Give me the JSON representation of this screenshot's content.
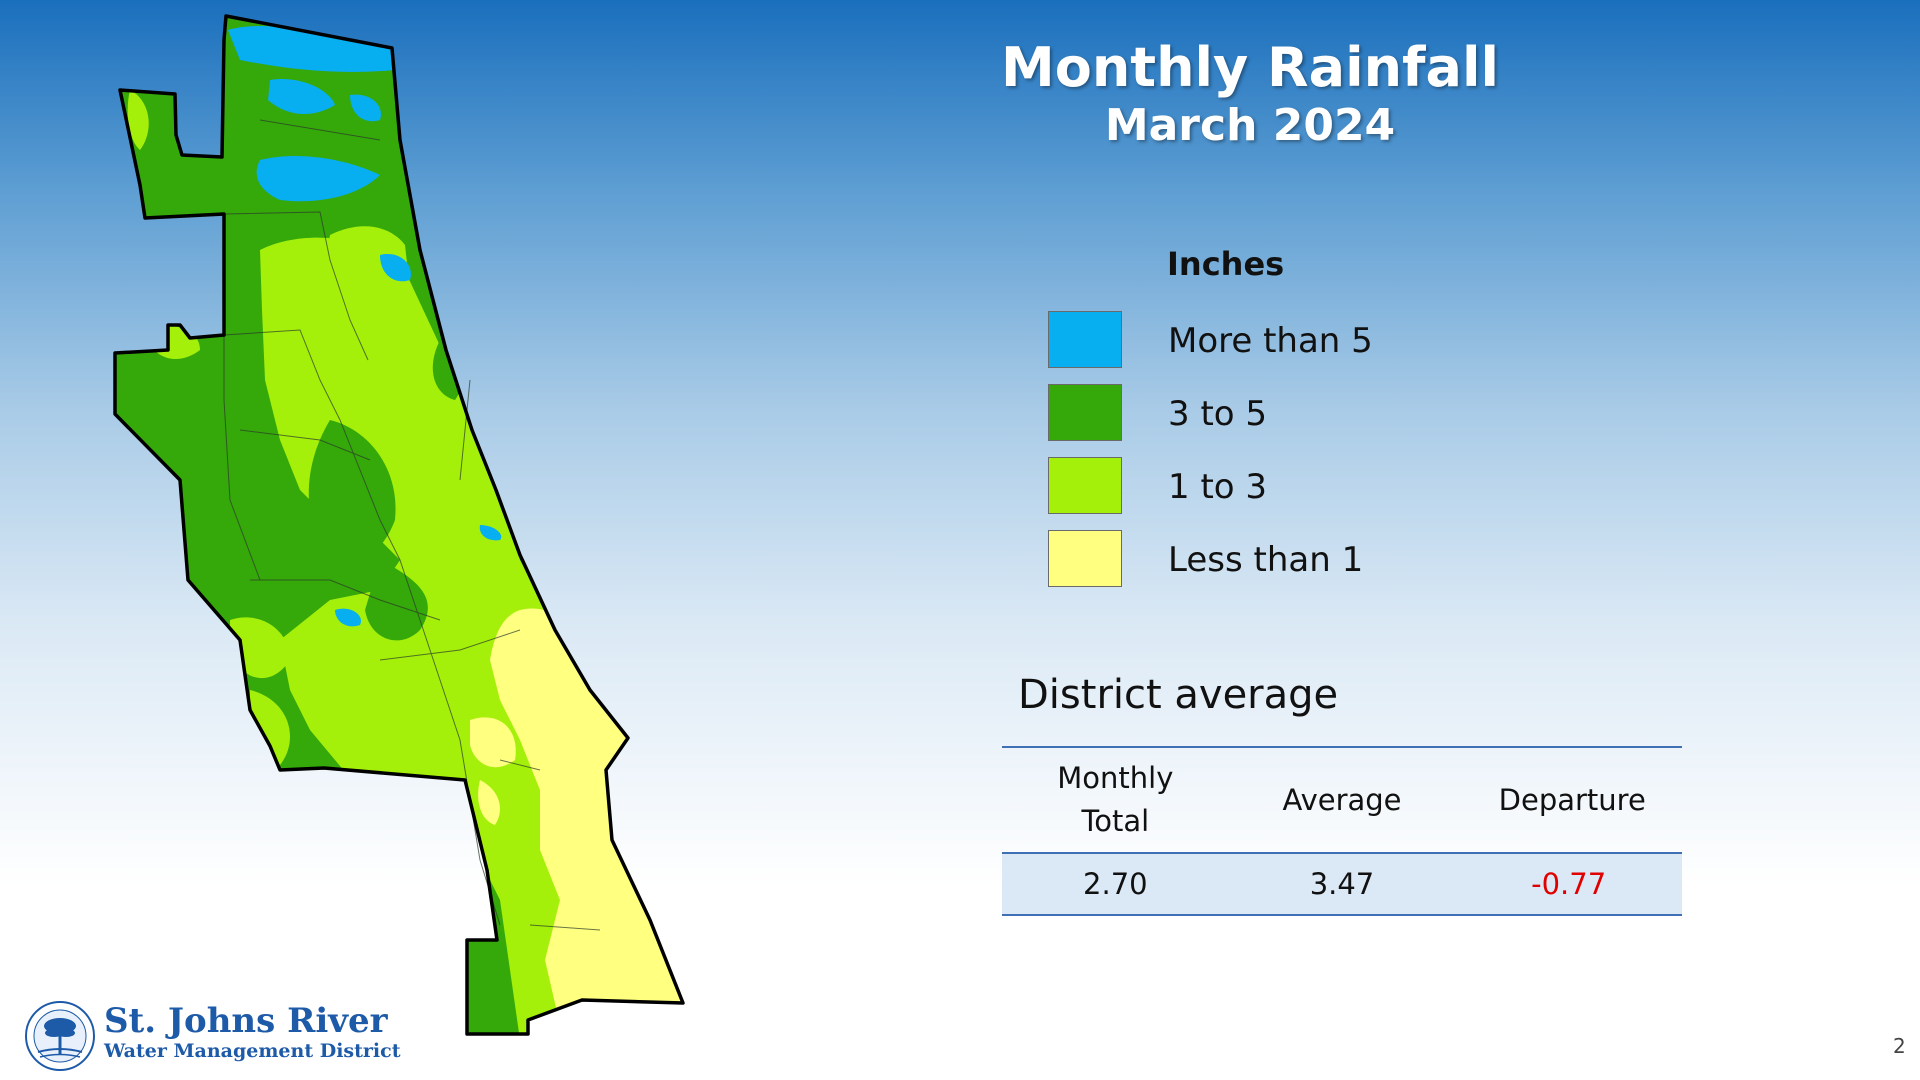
{
  "title": "Monthly Rainfall",
  "subtitle": "March 2024",
  "legend": {
    "heading": "Inches",
    "items": [
      {
        "label": "More than 5",
        "color": "#07aef0"
      },
      {
        "label": "3 to 5",
        "color": "#35a80a"
      },
      {
        "label": "1 to 3",
        "color": "#a4f00a"
      },
      {
        "label": "Less than 1",
        "color": "#ffff80"
      }
    ]
  },
  "district": {
    "heading": "District average",
    "columns": [
      "Monthly Total",
      "Average",
      "Departure"
    ],
    "values": [
      "2.70",
      "3.47",
      "-0.77"
    ],
    "departure_color": "#e00000"
  },
  "organization": {
    "line1": "St. Johns River",
    "line2": "Water Management District"
  },
  "page_number": "2"
}
